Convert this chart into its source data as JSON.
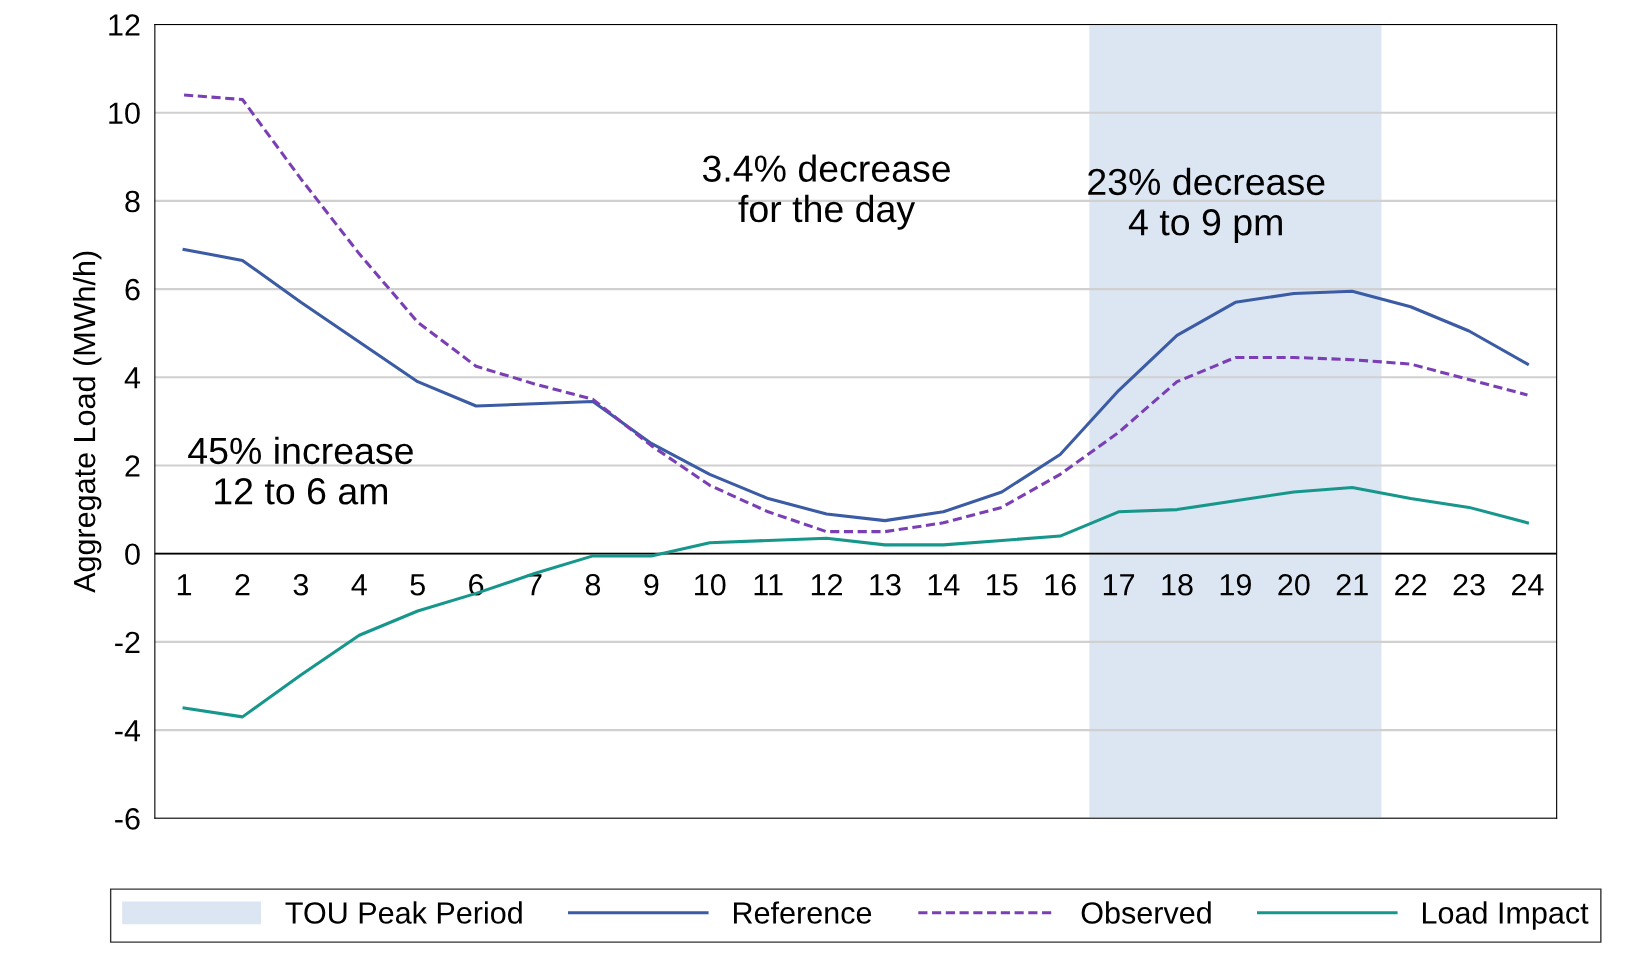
{
  "chart_data": {
    "type": "line",
    "ylabel": "Aggregate Load (MWh/h)",
    "categories": [
      "1",
      "2",
      "3",
      "4",
      "5",
      "6",
      "7",
      "8",
      "9",
      "10",
      "11",
      "12",
      "13",
      "14",
      "15",
      "16",
      "17",
      "18",
      "19",
      "20",
      "21",
      "22",
      "23",
      "24"
    ],
    "series": [
      {
        "name": "Reference",
        "color": "#3b5ba5",
        "line_style": "solid",
        "values": [
          6.9,
          6.65,
          5.7,
          4.8,
          3.9,
          3.35,
          3.4,
          3.45,
          2.5,
          1.8,
          1.25,
          0.9,
          0.75,
          0.95,
          1.4,
          2.25,
          3.7,
          4.95,
          5.7,
          5.9,
          5.95,
          5.6,
          5.05,
          4.3
        ]
      },
      {
        "name": "Observed",
        "color": "#7b3fb5",
        "line_style": "dashed",
        "values": [
          10.4,
          10.3,
          8.5,
          6.8,
          5.25,
          4.25,
          3.85,
          3.5,
          2.45,
          1.55,
          0.95,
          0.5,
          0.5,
          0.7,
          1.05,
          1.8,
          2.75,
          3.9,
          4.45,
          4.45,
          4.4,
          4.3,
          3.95,
          3.6
        ]
      },
      {
        "name": "Load Impact",
        "color": "#17978c",
        "line_style": "solid",
        "values": [
          -3.5,
          -3.7,
          -2.75,
          -1.85,
          -1.3,
          -0.9,
          -0.45,
          -0.05,
          -0.05,
          0.25,
          0.3,
          0.35,
          0.2,
          0.2,
          0.3,
          0.4,
          0.95,
          1.0,
          1.2,
          1.4,
          1.5,
          1.25,
          1.05,
          0.7
        ]
      }
    ],
    "ylim": [
      -6,
      12
    ],
    "yticks": [
      -6,
      -4,
      -2,
      0,
      2,
      4,
      6,
      8,
      10,
      12
    ],
    "grid": "y",
    "legend": "bottom",
    "marker": "none",
    "bands": [
      {
        "axis": "x",
        "from": "17",
        "to": "21",
        "label": "TOU Peak Period",
        "color": "#dce6f2"
      }
    ],
    "annotations": [
      "45% increase\n12 to 6 am",
      "3.4% decrease\nfor the day",
      "23% decrease\n4 to 9 pm"
    ]
  }
}
